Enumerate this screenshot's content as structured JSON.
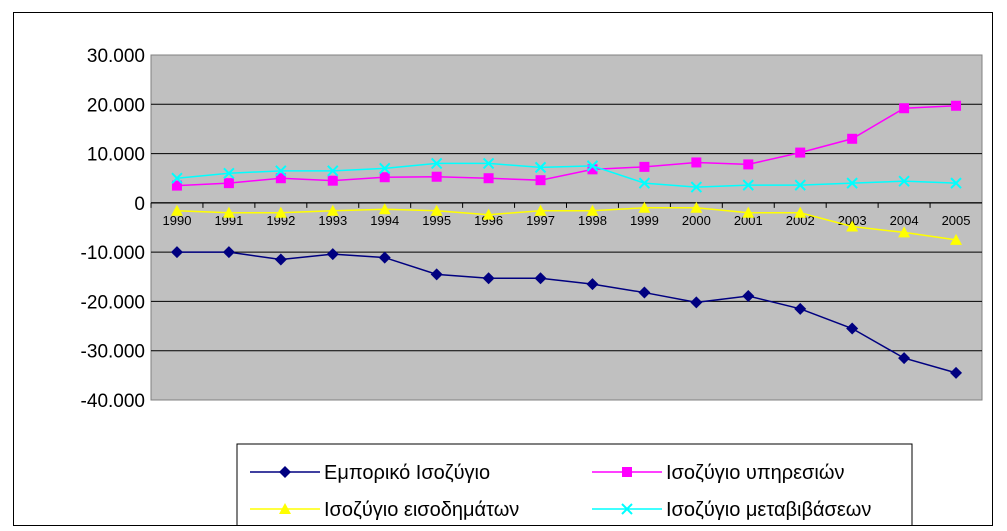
{
  "chart_data": {
    "type": "line",
    "x": [
      "1990",
      "1991",
      "1992",
      "1993",
      "1994",
      "1995",
      "1996",
      "1997",
      "1998",
      "1999",
      "2000",
      "2001",
      "2002",
      "2003",
      "2004",
      "2005"
    ],
    "ylim": [
      -40000,
      30000
    ],
    "ytick_values": [
      30000,
      20000,
      10000,
      0,
      -10000,
      -20000,
      -30000,
      -40000
    ],
    "ytick_labels": [
      "30.000",
      "20.000",
      "10.000",
      "0",
      "-10.000",
      "-20.000",
      "-30.000",
      "-40.000"
    ],
    "grid": true,
    "plot_background": "#c0c0c0",
    "legend_position": "bottom",
    "series": [
      {
        "name": "Εμπορικό Ισοζύγιο",
        "color": "#000080",
        "marker": "diamond",
        "values": [
          -10000,
          -10000,
          -11500,
          -10400,
          -11100,
          -14500,
          -15300,
          -15300,
          -16500,
          -18200,
          -20200,
          -18900,
          -21500,
          -25500,
          -31500,
          -34500
        ]
      },
      {
        "name": "Ισοζύγιο υπηρεσιών",
        "color": "#ff00ff",
        "marker": "square",
        "values": [
          3500,
          4000,
          5000,
          4500,
          5200,
          5300,
          5000,
          4600,
          6800,
          7300,
          8200,
          7800,
          10200,
          13000,
          19200,
          19700
        ]
      },
      {
        "name": "Ισοζύγιο εισοδημάτων",
        "color": "#ffff00",
        "marker": "triangle",
        "values": [
          -1600,
          -2000,
          -2000,
          -1600,
          -1300,
          -1600,
          -2400,
          -1600,
          -1600,
          -1000,
          -1000,
          -2000,
          -2000,
          -4800,
          -6000,
          -7500
        ]
      },
      {
        "name": "Ισοζύγιο μεταβιβάσεων",
        "color": "#00ffff",
        "marker": "x",
        "values": [
          5000,
          6000,
          6500,
          6500,
          7000,
          8000,
          8000,
          7200,
          7500,
          4000,
          3200,
          3600,
          3600,
          4000,
          4400,
          4000
        ]
      }
    ]
  }
}
